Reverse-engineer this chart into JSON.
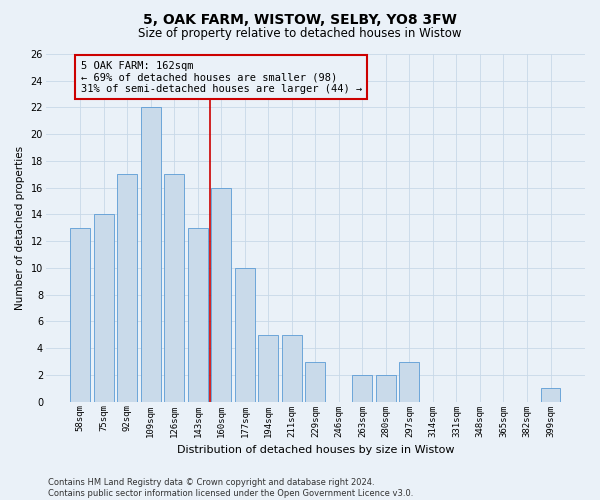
{
  "title": "5, OAK FARM, WISTOW, SELBY, YO8 3FW",
  "subtitle": "Size of property relative to detached houses in Wistow",
  "xlabel": "Distribution of detached houses by size in Wistow",
  "ylabel": "Number of detached properties",
  "categories": [
    "58sqm",
    "75sqm",
    "92sqm",
    "109sqm",
    "126sqm",
    "143sqm",
    "160sqm",
    "177sqm",
    "194sqm",
    "211sqm",
    "229sqm",
    "246sqm",
    "263sqm",
    "280sqm",
    "297sqm",
    "314sqm",
    "331sqm",
    "348sqm",
    "365sqm",
    "382sqm",
    "399sqm"
  ],
  "values": [
    13,
    14,
    17,
    22,
    17,
    13,
    16,
    10,
    5,
    5,
    3,
    0,
    2,
    2,
    3,
    0,
    0,
    0,
    0,
    0,
    1
  ],
  "bar_color": "#c9daea",
  "bar_edge_color": "#5b9bd5",
  "vline_index": 5.5,
  "vline_color": "#cc0000",
  "annotation_line1": "5 OAK FARM: 162sqm",
  "annotation_line2": "← 69% of detached houses are smaller (98)",
  "annotation_line3": "31% of semi-detached houses are larger (44) →",
  "annotation_box_color": "#cc0000",
  "ylim": [
    0,
    26
  ],
  "yticks": [
    0,
    2,
    4,
    6,
    8,
    10,
    12,
    14,
    16,
    18,
    20,
    22,
    24,
    26
  ],
  "grid_color": "#c8d8e8",
  "background_color": "#eaf1f8",
  "footer": "Contains HM Land Registry data © Crown copyright and database right 2024.\nContains public sector information licensed under the Open Government Licence v3.0."
}
